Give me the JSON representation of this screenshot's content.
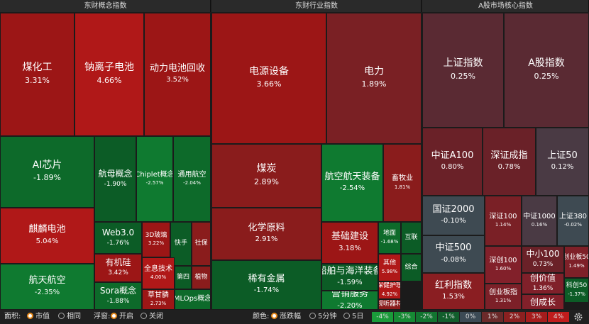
{
  "sections": [
    {
      "title": "东财概念指数",
      "tiles": [
        {
          "name": "煤化工",
          "change": "3.31%"
        },
        {
          "name": "钠离子电池",
          "change": "4.66%"
        },
        {
          "name": "动力电池回收",
          "change": "3.52%"
        },
        {
          "name": "AI芯片",
          "change": "-1.89%"
        },
        {
          "name": "航母概念",
          "change": "-1.90%"
        },
        {
          "name": "Chiplet概念",
          "change": "-2.57%"
        },
        {
          "name": "通用航空",
          "change": "-2.04%"
        },
        {
          "name": "麒麟电池",
          "change": "5.04%"
        },
        {
          "name": "航天航空",
          "change": "-2.35%"
        },
        {
          "name": "Web3.0",
          "change": "-1.76%"
        },
        {
          "name": "有机硅",
          "change": "3.42%"
        },
        {
          "name": "Sora概念",
          "change": "-1.88%"
        },
        {
          "name": "3D玻璃",
          "change": "3.22%"
        },
        {
          "name": "快手"
        },
        {
          "name": "社保"
        },
        {
          "name": "全息技术",
          "change": "4.00%"
        },
        {
          "name": "第四"
        },
        {
          "name": "植物"
        },
        {
          "name": "草甘膦",
          "change": "2.73%"
        },
        {
          "name": "MLOps概念"
        }
      ]
    },
    {
      "title": "东财行业指数",
      "tiles": [
        {
          "name": "电源设备",
          "change": "3.66%"
        },
        {
          "name": "电力",
          "change": "1.89%"
        },
        {
          "name": "煤炭",
          "change": "2.89%"
        },
        {
          "name": "化学原料",
          "change": "2.91%"
        },
        {
          "name": "稀有金属",
          "change": "-1.74%"
        },
        {
          "name": "航空航天装备",
          "change": "-2.54%"
        },
        {
          "name": "畜牧业",
          "change": "1.81%"
        },
        {
          "name": "基础建设",
          "change": "3.18%"
        },
        {
          "name": "船舶与海洋装备",
          "change": "-1.59%"
        },
        {
          "name": "营销服务",
          "change": "-2.20%"
        },
        {
          "name": "地面",
          "change": "-1.68%"
        },
        {
          "name": "互联"
        },
        {
          "name": "其他",
          "change": "5.98%"
        },
        {
          "name": "综合"
        },
        {
          "name": "保健护理",
          "change": "4.92%"
        },
        {
          "name": "视听器材"
        }
      ]
    },
    {
      "title": "A股市场核心指数",
      "tiles": [
        {
          "name": "上证指数",
          "change": "0.25%"
        },
        {
          "name": "A股指数",
          "change": "0.25%"
        },
        {
          "name": "中证A100",
          "change": "0.80%"
        },
        {
          "name": "深证成指",
          "change": "0.78%"
        },
        {
          "name": "上证50",
          "change": "0.12%"
        },
        {
          "name": "国证2000",
          "change": "-0.10%"
        },
        {
          "name": "中证500",
          "change": "-0.08%"
        },
        {
          "name": "红利指数",
          "change": "1.53%"
        },
        {
          "name": "深证100",
          "change": "1.14%"
        },
        {
          "name": "中证1000",
          "change": "0.16%"
        },
        {
          "name": "上证380",
          "change": "-0.02%"
        },
        {
          "name": "深创100",
          "change": "1.60%"
        },
        {
          "name": "中小100",
          "change": "0.73%"
        },
        {
          "name": "创业板50",
          "change": "1.49%"
        },
        {
          "name": "创价值",
          "change": "1.36%"
        },
        {
          "name": "科创50",
          "change": "-1.37%"
        },
        {
          "name": "创业板指",
          "change": "1.31%"
        },
        {
          "name": "创成长"
        }
      ]
    }
  ],
  "controls": {
    "area_label": "面积:",
    "area_options": [
      "市值",
      "相同"
    ],
    "float_label": "浮窗:",
    "float_options": [
      "开启",
      "关闭"
    ],
    "color_label": "颜色:",
    "color_options": [
      "涨跌幅",
      "5分钟",
      "5日"
    ],
    "legend": [
      "-4%",
      "-3%",
      "-2%",
      "-1%",
      "0%",
      "1%",
      "2%",
      "3%",
      "4%"
    ]
  }
}
